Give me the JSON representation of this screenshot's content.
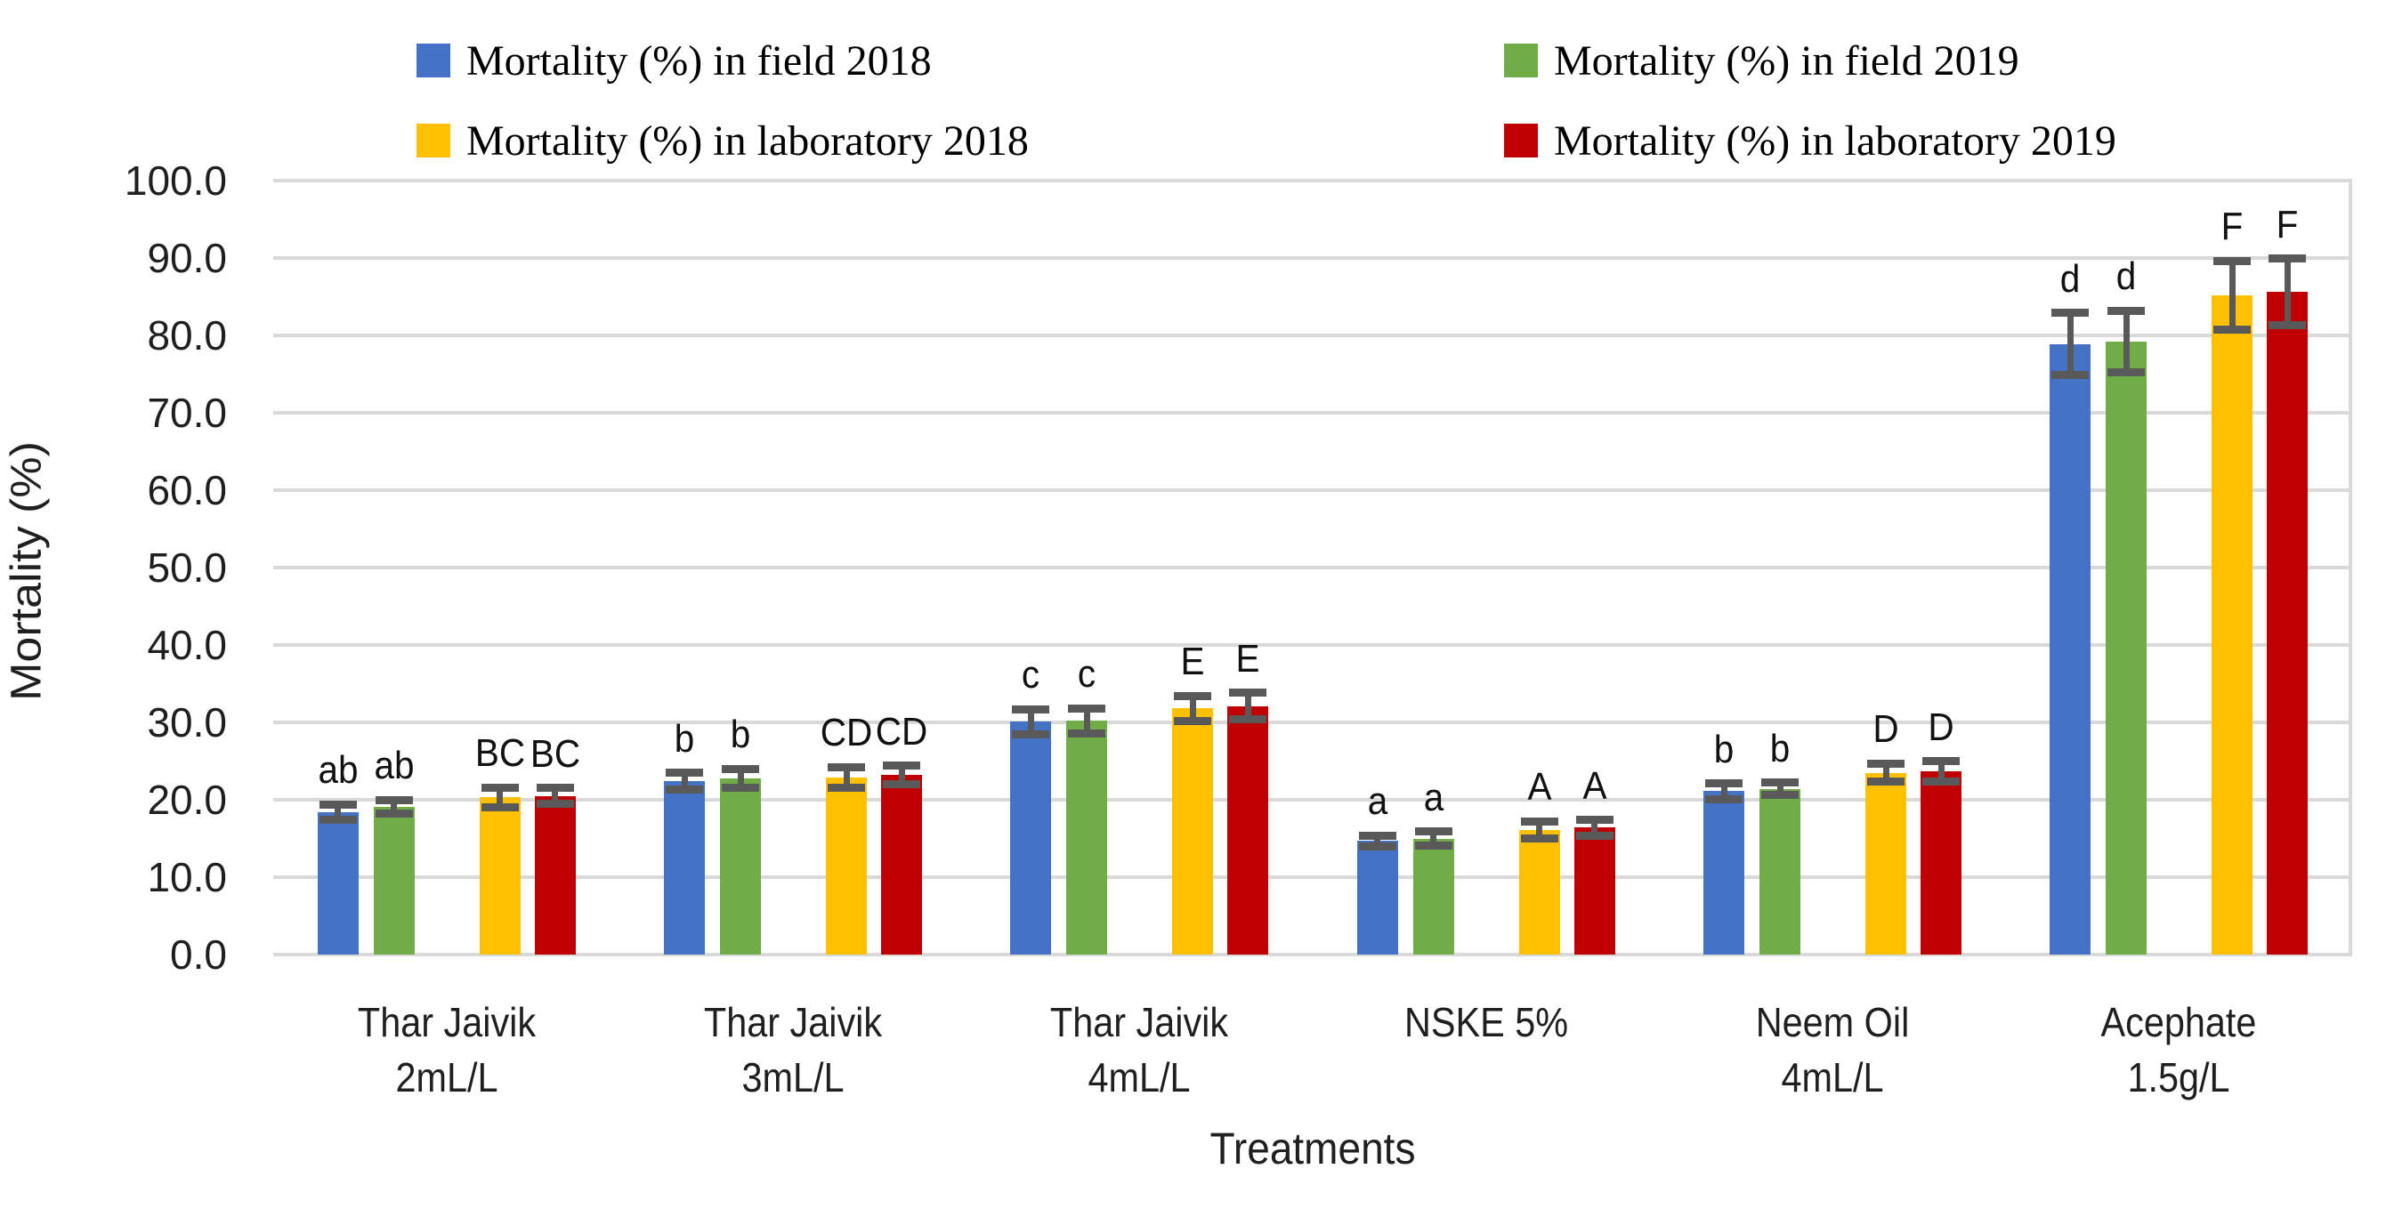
{
  "axis": {
    "y_title": "Mortality (%)",
    "x_title": "Treatments"
  },
  "chart_data": {
    "type": "bar",
    "title": "",
    "xlabel": "Treatments",
    "ylabel": "Mortality (%)",
    "ylim": [
      0,
      100
    ],
    "ytick_step": 10,
    "grid": "horizontal",
    "legend_position": "top",
    "ytick_labels": [
      "100.0",
      "90.0",
      "80.0",
      "70.0",
      "60.0",
      "50.0",
      "40.0",
      "30.0",
      "20.0",
      "10.0",
      "0.0"
    ],
    "categories": [
      [
        "Thar Jaivik",
        "2mL/L"
      ],
      [
        "Thar Jaivik",
        "3mL/L"
      ],
      [
        "Thar Jaivik",
        "4mL/L"
      ],
      [
        "NSKE 5%"
      ],
      [
        "Neem Oil",
        "4mL/L"
      ],
      [
        "Acephate",
        "1.5g/L"
      ]
    ],
    "series": [
      {
        "name": "Mortality (%) in field 2018",
        "color": "#4472C4",
        "values": [
          18.4,
          22.4,
          30.1,
          14.7,
          21.1,
          78.9
        ],
        "errors": [
          1.0,
          1.1,
          1.6,
          0.7,
          1.0,
          4.0
        ],
        "letters": [
          "ab",
          "b",
          "c",
          "a",
          "b",
          "d"
        ]
      },
      {
        "name": "Mortality (%) in field 2019",
        "color": "#70AD47",
        "values": [
          19.1,
          22.8,
          30.2,
          15.0,
          21.4,
          79.2
        ],
        "errors": [
          0.9,
          1.2,
          1.6,
          0.9,
          0.8,
          4.0
        ],
        "letters": [
          "ab",
          "b",
          "c",
          "a",
          "b",
          "d"
        ]
      },
      {
        "name": "Mortality (%) in laboratory 2018",
        "color": "#FFC000",
        "values": [
          20.3,
          22.9,
          31.8,
          16.1,
          23.5,
          85.2
        ],
        "errors": [
          1.3,
          1.3,
          1.6,
          1.1,
          1.2,
          4.4
        ],
        "letters": [
          "BC",
          "CD",
          "E",
          "A",
          "D",
          "F"
        ]
      },
      {
        "name": "Mortality (%) in laboratory 2019",
        "color": "#C00000",
        "values": [
          20.5,
          23.2,
          32.1,
          16.4,
          23.7,
          85.6
        ],
        "errors": [
          1.0,
          1.2,
          1.7,
          1.0,
          1.3,
          4.3
        ],
        "letters": [
          "BC",
          "CD",
          "E",
          "A",
          "D",
          "F"
        ]
      }
    ],
    "colors": {
      "gridline": "#d9d9d9",
      "error_bar": "#595959"
    }
  }
}
